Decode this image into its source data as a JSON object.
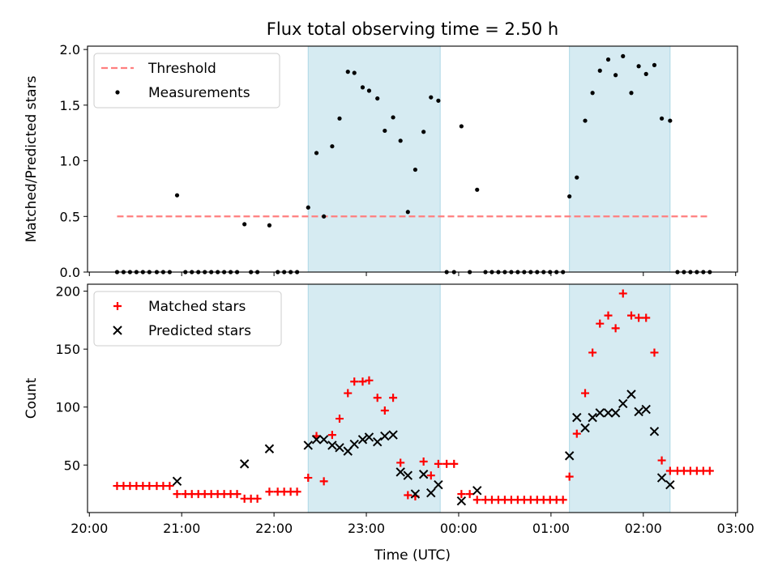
{
  "figure_title": "Flux total observing time = 2.50 h",
  "colors": {
    "threshold": "#ff7f7f",
    "measurement": "#000000",
    "matched": "#ff0000",
    "predicted": "#000000",
    "span_fill": "#add8e6"
  },
  "chart_data": [
    {
      "type": "scatter",
      "title": "",
      "xlabel": "",
      "ylabel": "Matched/Predicted stars",
      "x_unit": "hours since 2020-01-01 00:00 UTC (time axis shared)",
      "xlim": [
        19.98,
        27.02
      ],
      "ylim": [
        0,
        2.03
      ],
      "yticks": [
        0.0,
        0.5,
        1.0,
        1.5,
        2.0
      ],
      "ytick_labels": [
        "0.0",
        "0.5",
        "1.0",
        "1.5",
        "2.0"
      ],
      "grid": false,
      "legend_position": "upper left",
      "shaded_intervals": [
        [
          22.37,
          23.8
        ],
        [
          25.2,
          26.29
        ]
      ],
      "threshold": {
        "name": "Threshold",
        "value": 0.5,
        "x_range": [
          20.3,
          26.72
        ]
      },
      "series": [
        {
          "name": "Measurements",
          "points": [
            [
              20.3,
              0
            ],
            [
              20.37,
              0
            ],
            [
              20.44,
              0
            ],
            [
              20.51,
              0
            ],
            [
              20.58,
              0
            ],
            [
              20.65,
              0
            ],
            [
              20.73,
              0
            ],
            [
              20.8,
              0
            ],
            [
              20.87,
              0
            ],
            [
              20.95,
              0.69
            ],
            [
              21.04,
              0
            ],
            [
              21.11,
              0
            ],
            [
              21.18,
              0
            ],
            [
              21.25,
              0
            ],
            [
              21.32,
              0
            ],
            [
              21.39,
              0
            ],
            [
              21.46,
              0
            ],
            [
              21.53,
              0
            ],
            [
              21.6,
              0
            ],
            [
              21.68,
              0.43
            ],
            [
              21.75,
              0
            ],
            [
              21.82,
              0
            ],
            [
              21.95,
              0.42
            ],
            [
              22.04,
              0
            ],
            [
              22.11,
              0
            ],
            [
              22.18,
              0
            ],
            [
              22.25,
              0
            ],
            [
              22.37,
              0.58
            ],
            [
              22.46,
              1.07
            ],
            [
              22.54,
              0.5
            ],
            [
              22.63,
              1.13
            ],
            [
              22.71,
              1.38
            ],
            [
              22.8,
              1.8
            ],
            [
              22.87,
              1.79
            ],
            [
              22.96,
              1.66
            ],
            [
              23.03,
              1.63
            ],
            [
              23.12,
              1.56
            ],
            [
              23.2,
              1.27
            ],
            [
              23.29,
              1.39
            ],
            [
              23.37,
              1.18
            ],
            [
              23.45,
              0.54
            ],
            [
              23.53,
              0.92
            ],
            [
              23.62,
              1.26
            ],
            [
              23.7,
              1.57
            ],
            [
              23.78,
              1.54
            ],
            [
              23.87,
              0
            ],
            [
              23.95,
              0
            ],
            [
              24.03,
              1.31
            ],
            [
              24.12,
              0
            ],
            [
              24.2,
              0.74
            ],
            [
              24.29,
              0
            ],
            [
              24.36,
              0
            ],
            [
              24.43,
              0
            ],
            [
              24.5,
              0
            ],
            [
              24.57,
              0
            ],
            [
              24.64,
              0
            ],
            [
              24.71,
              0
            ],
            [
              24.78,
              0
            ],
            [
              24.85,
              0
            ],
            [
              24.92,
              0
            ],
            [
              24.99,
              0
            ],
            [
              25.06,
              0
            ],
            [
              25.13,
              0
            ],
            [
              25.2,
              0.68
            ],
            [
              25.28,
              0.85
            ],
            [
              25.37,
              1.36
            ],
            [
              25.45,
              1.61
            ],
            [
              25.53,
              1.81
            ],
            [
              25.62,
              1.91
            ],
            [
              25.7,
              1.77
            ],
            [
              25.78,
              1.94
            ],
            [
              25.87,
              1.61
            ],
            [
              25.95,
              1.85
            ],
            [
              26.03,
              1.78
            ],
            [
              26.12,
              1.86
            ],
            [
              26.2,
              1.38
            ],
            [
              26.29,
              1.36
            ],
            [
              26.37,
              0
            ],
            [
              26.44,
              0
            ],
            [
              26.51,
              0
            ],
            [
              26.58,
              0
            ],
            [
              26.65,
              0
            ],
            [
              26.72,
              0
            ]
          ]
        }
      ]
    },
    {
      "type": "scatter",
      "title": "",
      "xlabel": "Time (UTC)",
      "ylabel": "Count",
      "x_unit": "hours since 2020-01-01 00:00 UTC (time axis shared)",
      "xlim": [
        19.98,
        27.02
      ],
      "ylim": [
        9,
        206
      ],
      "yticks": [
        50,
        100,
        150,
        200
      ],
      "ytick_labels": [
        "50",
        "100",
        "150",
        "200"
      ],
      "xticks": [
        20,
        21,
        22,
        23,
        24,
        25,
        26,
        27
      ],
      "xtick_labels": [
        "20:00",
        "21:00",
        "22:00",
        "23:00",
        "00:00",
        "01:00",
        "02:00",
        "03:00"
      ],
      "grid": false,
      "legend_position": "upper left",
      "shaded_intervals": [
        [
          22.37,
          23.8
        ],
        [
          25.2,
          26.29
        ]
      ],
      "series": [
        {
          "name": "Matched stars",
          "marker": "plus",
          "points": [
            [
              20.3,
              32
            ],
            [
              20.37,
              32
            ],
            [
              20.44,
              32
            ],
            [
              20.51,
              32
            ],
            [
              20.58,
              32
            ],
            [
              20.65,
              32
            ],
            [
              20.73,
              32
            ],
            [
              20.8,
              32
            ],
            [
              20.87,
              32
            ],
            [
              20.95,
              25
            ],
            [
              21.04,
              25
            ],
            [
              21.11,
              25
            ],
            [
              21.18,
              25
            ],
            [
              21.25,
              25
            ],
            [
              21.32,
              25
            ],
            [
              21.39,
              25
            ],
            [
              21.46,
              25
            ],
            [
              21.53,
              25
            ],
            [
              21.6,
              25
            ],
            [
              21.68,
              21
            ],
            [
              21.75,
              21
            ],
            [
              21.82,
              21
            ],
            [
              21.95,
              27
            ],
            [
              22.04,
              27
            ],
            [
              22.11,
              27
            ],
            [
              22.18,
              27
            ],
            [
              22.25,
              27
            ],
            [
              22.37,
              39
            ],
            [
              22.46,
              75
            ],
            [
              22.54,
              36
            ],
            [
              22.63,
              76
            ],
            [
              22.71,
              90
            ],
            [
              22.8,
              112
            ],
            [
              22.87,
              122
            ],
            [
              22.96,
              122
            ],
            [
              23.03,
              123
            ],
            [
              23.12,
              108
            ],
            [
              23.2,
              97
            ],
            [
              23.29,
              108
            ],
            [
              23.37,
              52
            ],
            [
              23.45,
              24
            ],
            [
              23.53,
              23
            ],
            [
              23.62,
              53
            ],
            [
              23.7,
              41
            ],
            [
              23.78,
              51
            ],
            [
              23.87,
              51
            ],
            [
              23.95,
              51
            ],
            [
              24.03,
              25
            ],
            [
              24.12,
              25
            ],
            [
              24.2,
              20
            ],
            [
              24.29,
              20
            ],
            [
              24.36,
              20
            ],
            [
              24.43,
              20
            ],
            [
              24.5,
              20
            ],
            [
              24.57,
              20
            ],
            [
              24.64,
              20
            ],
            [
              24.71,
              20
            ],
            [
              24.78,
              20
            ],
            [
              24.85,
              20
            ],
            [
              24.92,
              20
            ],
            [
              24.99,
              20
            ],
            [
              25.06,
              20
            ],
            [
              25.13,
              20
            ],
            [
              25.2,
              40
            ],
            [
              25.28,
              77
            ],
            [
              25.37,
              112
            ],
            [
              25.45,
              147
            ],
            [
              25.53,
              172
            ],
            [
              25.62,
              179
            ],
            [
              25.7,
              168
            ],
            [
              25.78,
              198
            ],
            [
              25.87,
              179
            ],
            [
              25.95,
              177
            ],
            [
              26.03,
              177
            ],
            [
              26.12,
              147
            ],
            [
              26.2,
              54
            ],
            [
              26.29,
              45
            ],
            [
              26.37,
              45
            ],
            [
              26.44,
              45
            ],
            [
              26.51,
              45
            ],
            [
              26.58,
              45
            ],
            [
              26.65,
              45
            ],
            [
              26.72,
              45
            ]
          ]
        },
        {
          "name": "Predicted stars",
          "marker": "x",
          "points": [
            [
              20.95,
              36
            ],
            [
              21.68,
              51
            ],
            [
              21.95,
              64
            ],
            [
              22.37,
              67
            ],
            [
              22.46,
              72
            ],
            [
              22.54,
              72
            ],
            [
              22.63,
              67
            ],
            [
              22.71,
              65
            ],
            [
              22.8,
              62
            ],
            [
              22.87,
              68
            ],
            [
              22.96,
              72
            ],
            [
              23.03,
              74
            ],
            [
              23.12,
              70
            ],
            [
              23.2,
              75
            ],
            [
              23.29,
              76
            ],
            [
              23.37,
              44
            ],
            [
              23.45,
              41
            ],
            [
              23.53,
              25
            ],
            [
              23.62,
              42
            ],
            [
              23.7,
              26
            ],
            [
              23.78,
              33
            ],
            [
              24.03,
              19
            ],
            [
              24.2,
              28
            ],
            [
              25.2,
              58
            ],
            [
              25.28,
              91
            ],
            [
              25.37,
              82
            ],
            [
              25.45,
              91
            ],
            [
              25.53,
              95
            ],
            [
              25.62,
              95
            ],
            [
              25.7,
              95
            ],
            [
              25.78,
              103
            ],
            [
              25.87,
              111
            ],
            [
              25.95,
              96
            ],
            [
              26.03,
              98
            ],
            [
              26.12,
              79
            ],
            [
              26.2,
              39
            ],
            [
              26.29,
              33
            ]
          ]
        }
      ]
    }
  ]
}
